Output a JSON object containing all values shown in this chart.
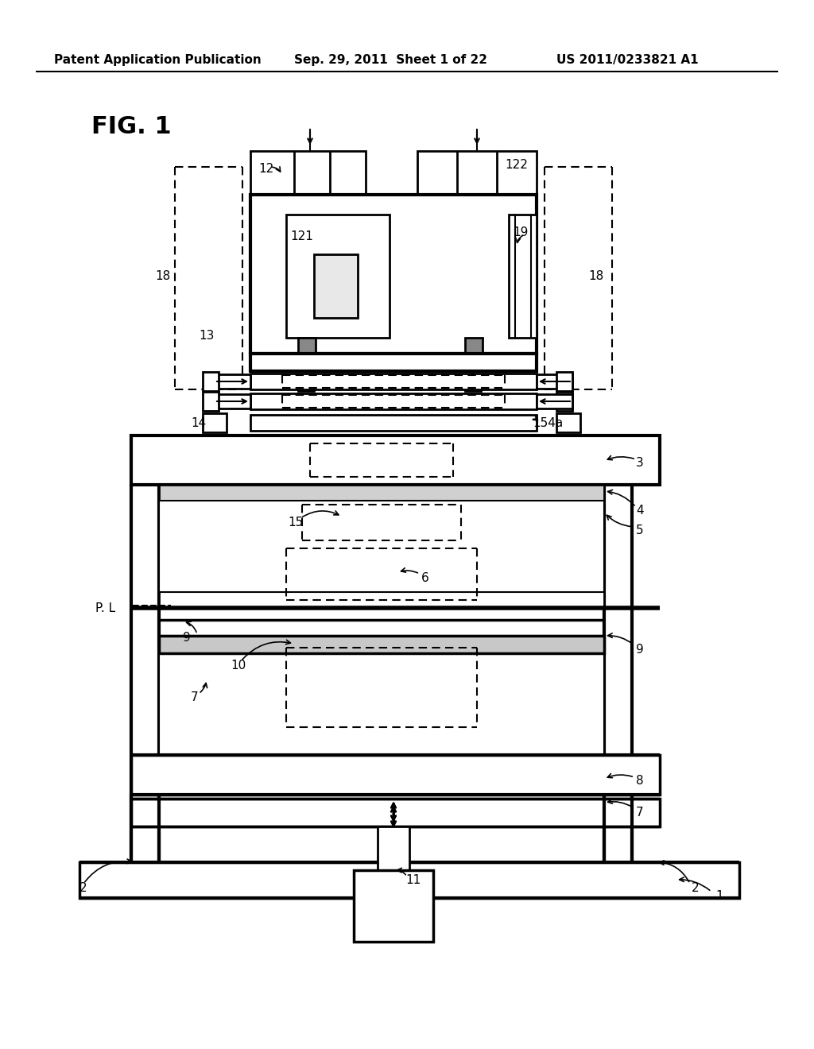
{
  "header_left": "Patent Application Publication",
  "header_center": "Sep. 29, 2011  Sheet 1 of 22",
  "header_right": "US 2011/0233821 A1",
  "figure_label": "FIG. 1",
  "bg_color": "#ffffff",
  "line_color": "#000000",
  "dashed_color": "#333333"
}
